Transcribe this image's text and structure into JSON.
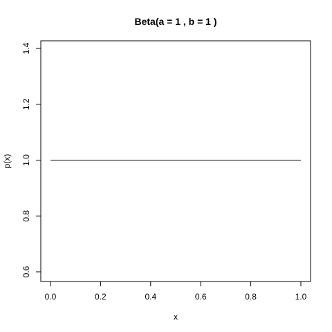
{
  "chart_data": {
    "type": "line",
    "title": "Beta(a = 1 , b =  1 )",
    "xlabel": "x",
    "ylabel": "p(x)",
    "xlim": [
      0.0,
      1.0
    ],
    "ylim": [
      0.6,
      1.4
    ],
    "x_ticks": [
      "0.0",
      "0.2",
      "0.4",
      "0.6",
      "0.8",
      "1.0"
    ],
    "y_ticks": [
      "0.6",
      "0.8",
      "1.0",
      "1.2",
      "1.4"
    ],
    "grid": false,
    "series": [
      {
        "x": [
          0.0,
          1.0
        ],
        "y": [
          1.0,
          1.0
        ],
        "color": "#000000"
      }
    ]
  }
}
